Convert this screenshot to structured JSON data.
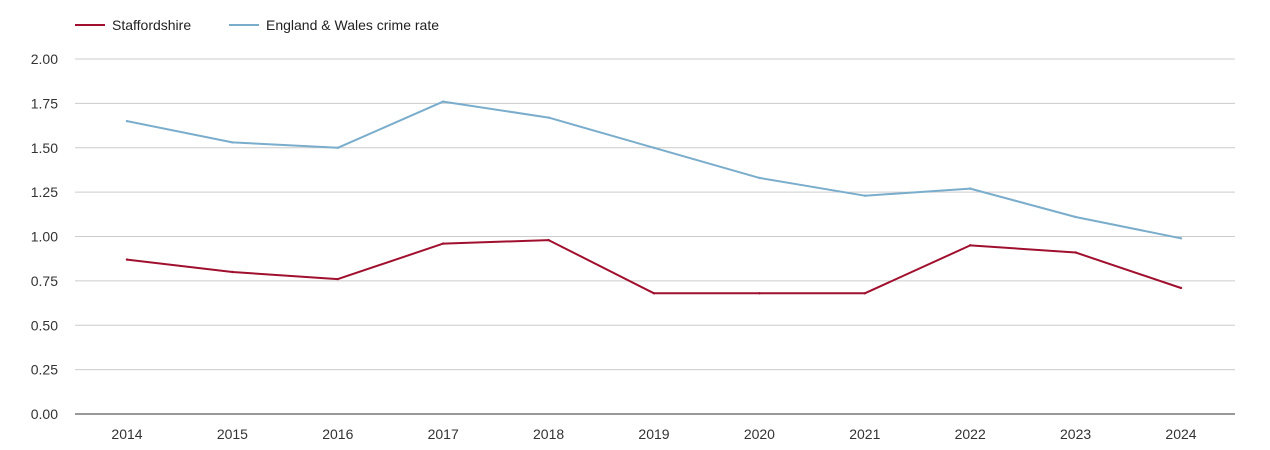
{
  "chart_data": {
    "type": "line",
    "title": "",
    "xlabel": "",
    "ylabel": "",
    "categories": [
      "2014",
      "2015",
      "2016",
      "2017",
      "2018",
      "2019",
      "2020",
      "2021",
      "2022",
      "2023",
      "2024"
    ],
    "ylim": [
      0,
      2
    ],
    "yticks": [
      "0.00",
      "0.25",
      "0.50",
      "0.75",
      "1.00",
      "1.25",
      "1.50",
      "1.75",
      "2.00"
    ],
    "grid": true,
    "legend_position": "top-left",
    "series": [
      {
        "name": "Staffordshire",
        "color": "#a0102e",
        "values": [
          0.87,
          0.8,
          0.76,
          0.96,
          0.98,
          0.68,
          0.68,
          0.68,
          0.95,
          0.91,
          0.71
        ]
      },
      {
        "name": "England & Wales crime rate",
        "color": "#7aadcc",
        "values": [
          1.65,
          1.53,
          1.5,
          1.76,
          1.67,
          1.5,
          1.33,
          1.23,
          1.27,
          1.11,
          0.99
        ]
      }
    ]
  }
}
